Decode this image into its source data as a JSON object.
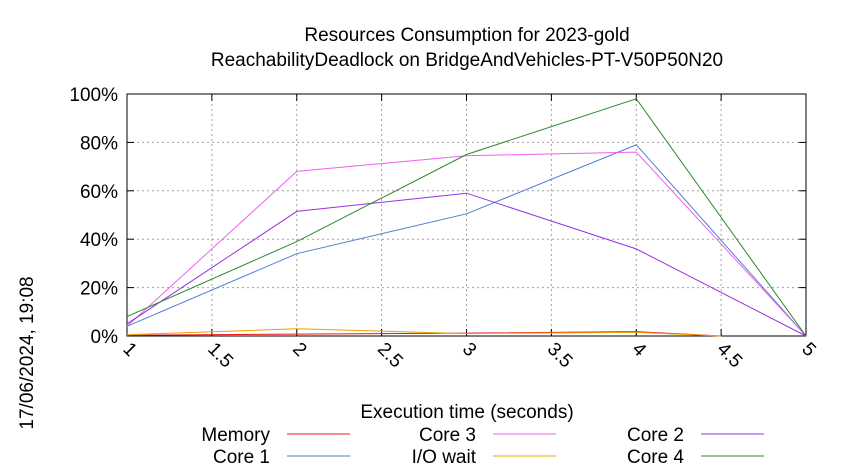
{
  "chart_data": {
    "type": "line",
    "title_line1": "Resources Consumption for 2023-gold",
    "title_line2": "ReachabilityDeadlock on BridgeAndVehicles-PT-V50P50N20",
    "xlabel": "Execution time (seconds)",
    "ylabel": "",
    "timestamp": "17/06/2024, 19:08",
    "xlim": [
      1,
      5
    ],
    "ylim": [
      0,
      100
    ],
    "x_ticks": [
      1,
      1.5,
      2,
      2.5,
      3,
      3.5,
      4,
      4.5,
      5
    ],
    "x_tick_labels": [
      "1",
      "1.5",
      "2",
      "2.5",
      "3",
      "3.5",
      "4",
      "4.5",
      "5"
    ],
    "y_ticks": [
      0,
      20,
      40,
      60,
      80,
      100
    ],
    "y_tick_labels": [
      "0%",
      "20%",
      "40%",
      "60%",
      "80%",
      "100%"
    ],
    "grid": true,
    "legend_position": "bottom",
    "series": [
      {
        "name": "Memory",
        "color": "#e41a1c",
        "x": [
          1,
          2,
          3,
          4,
          4.5
        ],
        "values": [
          0.3,
          0.8,
          1.2,
          1.8,
          0
        ]
      },
      {
        "name": "Core 1",
        "color": "#4f7fd0",
        "x": [
          1,
          2,
          3,
          4,
          5
        ],
        "values": [
          4,
          34,
          50.5,
          79,
          0
        ]
      },
      {
        "name": "Core 3",
        "color": "#f060f0",
        "x": [
          1,
          2,
          3,
          4,
          5
        ],
        "values": [
          4,
          68,
          74.5,
          76,
          0
        ]
      },
      {
        "name": "I/O wait",
        "color": "#f0a000",
        "x": [
          1,
          2,
          3,
          4,
          4.5
        ],
        "values": [
          0.5,
          3,
          1,
          1.5,
          0
        ]
      },
      {
        "name": "Core 2",
        "color": "#9932e0",
        "x": [
          1,
          2,
          3,
          4,
          5
        ],
        "values": [
          5,
          51.5,
          59,
          36,
          0
        ]
      },
      {
        "name": "Core 4",
        "color": "#2a8a2a",
        "x": [
          1,
          2,
          3,
          4,
          5
        ],
        "values": [
          8,
          39,
          75,
          98,
          0
        ]
      }
    ]
  }
}
